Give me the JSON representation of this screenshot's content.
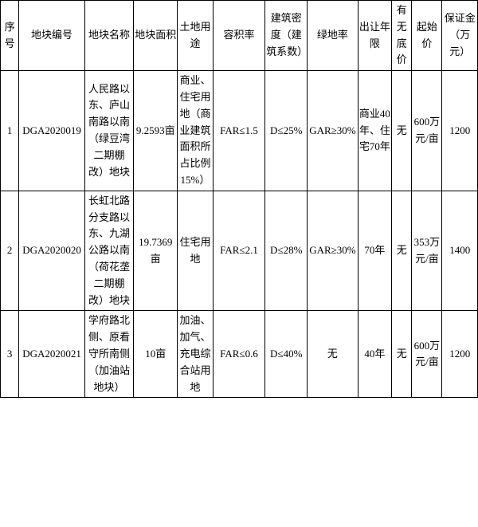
{
  "headers": {
    "seq": "序号",
    "code": "地块编号",
    "name": "地块名称",
    "area": "地块面积",
    "use": "土地用途",
    "far": "容积率",
    "density": "建筑密度（建筑系数）",
    "green": "绿地率",
    "term": "出让年限",
    "floor": "有无底价",
    "price": "起始价",
    "deposit": "保证金（万元）"
  },
  "rows": [
    {
      "seq": "1",
      "code": "DGA2020019",
      "name": "人民路以东、庐山南路以南（绿豆湾二期棚改）地块",
      "area": "9.2593亩",
      "use": "商业、住宅用地（商业建筑面积所占比例15%）",
      "far": "FAR≤1.5",
      "density": "D≤25%",
      "green": "GAR≥30%",
      "term": "商业40年、住宅70年",
      "floor": "无",
      "price": "600万元/亩",
      "deposit": "1200"
    },
    {
      "seq": "2",
      "code": "DGA2020020",
      "name": "长虹北路分支路以东、九湖公路以南（荷花垄二期棚改）地块",
      "area": "19.7369亩",
      "use": "住宅用地",
      "far": "FAR≤2.1",
      "density": "D≤28%",
      "green": "GAR≥30%",
      "term": "70年",
      "floor": "无",
      "price": "353万元/亩",
      "deposit": "1400"
    },
    {
      "seq": "3",
      "code": "DGA2020021",
      "name": "学府路北侧、原看守所南侧（加油站地块）",
      "area": "10亩",
      "use": "加油、加气、充电综合站用地",
      "far": "FAR≤0.6",
      "density": "D≤40%",
      "green": "无",
      "term": "40年",
      "floor": "无",
      "price": "600万元/亩",
      "deposit": "1200"
    }
  ]
}
